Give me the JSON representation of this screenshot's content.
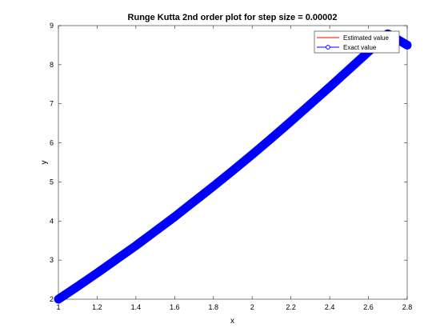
{
  "chart_data": {
    "type": "line",
    "title": "Runge Kutta 2nd order plot for step size = 0.00002",
    "xlabel": "x",
    "ylabel": "y",
    "xlim": [
      1,
      2.8
    ],
    "ylim": [
      2,
      9
    ],
    "x_ticks": [
      1,
      1.2,
      1.4,
      1.6,
      1.8,
      2,
      2.2,
      2.4,
      2.6,
      2.8
    ],
    "x_tick_labels": [
      "1",
      "1.2",
      "1.4",
      "1.6",
      "1.8",
      "2",
      "2.2",
      "2.4",
      "2.6",
      "2.8"
    ],
    "y_ticks": [
      2,
      3,
      4,
      5,
      6,
      7,
      8,
      9
    ],
    "y_tick_labels": [
      "2",
      "3",
      "4",
      "5",
      "6",
      "7",
      "8",
      "9"
    ],
    "grid": false,
    "legend_position": "top-right",
    "x": [
      1.0,
      1.1,
      1.2,
      1.3,
      1.4,
      1.5,
      1.6,
      1.7,
      1.8,
      1.9,
      2.0,
      2.1,
      2.2,
      2.3,
      2.4,
      2.5,
      2.6,
      2.7,
      2.8
    ],
    "series": [
      {
        "name": "Estimated value",
        "color": "#ff0000",
        "marker": "none",
        "values": [
          2.0,
          2.33,
          2.67,
          3.02,
          3.37,
          3.74,
          4.11,
          4.5,
          4.89,
          5.29,
          5.7,
          6.12,
          6.55,
          6.99,
          7.43,
          7.88,
          8.33,
          8.79,
          8.5
        ]
      },
      {
        "name": "Exact value",
        "color": "#0000ff",
        "marker": "circle",
        "values": [
          2.0,
          2.33,
          2.67,
          3.02,
          3.37,
          3.74,
          4.11,
          4.5,
          4.89,
          5.29,
          5.7,
          6.12,
          6.55,
          6.99,
          7.43,
          7.88,
          8.33,
          8.79,
          8.5
        ]
      }
    ]
  }
}
